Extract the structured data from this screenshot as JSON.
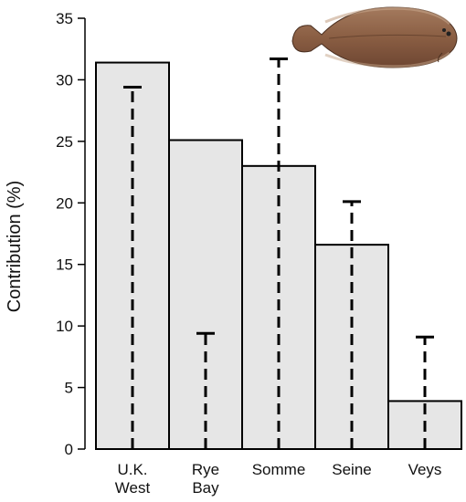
{
  "chart_data": {
    "type": "bar",
    "title": "",
    "xlabel": "",
    "ylabel": "Contribution (%)",
    "ylim": [
      0,
      35
    ],
    "yticks": [
      0,
      5,
      10,
      15,
      20,
      25,
      30,
      35
    ],
    "grid": false,
    "legend": "none",
    "categories": [
      [
        "U.K.",
        "West"
      ],
      [
        "Rye",
        "Bay"
      ],
      [
        "Somme"
      ],
      [
        "Seine"
      ],
      [
        "Veys"
      ]
    ],
    "series": [
      {
        "values": [
          31.4,
          25.1,
          23.0,
          16.6,
          3.9
        ],
        "error_values": [
          29.4,
          9.4,
          31.7,
          20.1,
          9.1
        ]
      }
    ],
    "bar_color": "#e6e6e6",
    "bar_edge_color": "#000000",
    "errorbar_style": "dashed",
    "inset_image": "sole-fish-illustration"
  }
}
